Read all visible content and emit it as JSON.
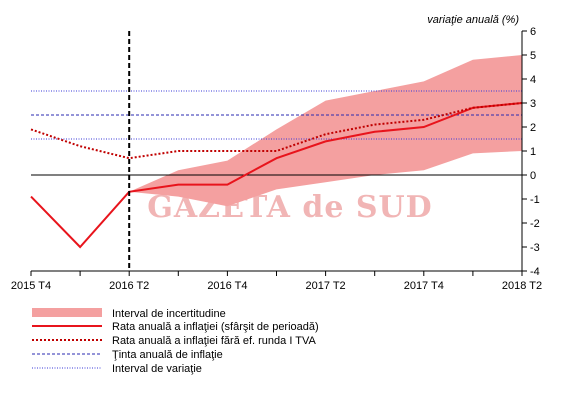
{
  "chart_data": {
    "type": "line",
    "ylabel": "variaţie anuală (%)",
    "ylim": [
      -4,
      6
    ],
    "yticks": [
      -4,
      -3,
      -2,
      -1,
      0,
      1,
      2,
      3,
      4,
      5,
      6
    ],
    "x_labels": [
      {
        "index": 0,
        "label": "2015 T4"
      },
      {
        "index": 2,
        "label": "2016 T2"
      },
      {
        "index": 4,
        "label": "2016 T4"
      },
      {
        "index": 6,
        "label": "2017 T2"
      },
      {
        "index": 8,
        "label": "2017 T4"
      },
      {
        "index": 10,
        "label": "2018 T2"
      }
    ],
    "x_count": 11,
    "vertical_marker_index": 2,
    "watermark": "GAZETA de SUD",
    "uncertainty_band": {
      "name": "Interval de incertitudine",
      "color": "#f4a0a0",
      "x": [
        2,
        3,
        4,
        5,
        6,
        7,
        8,
        9,
        10
      ],
      "lower": [
        -0.7,
        -0.9,
        -1.3,
        -0.6,
        -0.3,
        0.0,
        0.2,
        0.9,
        1.0
      ],
      "upper": [
        -0.7,
        0.2,
        0.6,
        1.9,
        3.1,
        3.5,
        3.9,
        4.8,
        5.0
      ]
    },
    "series": [
      {
        "name": "Rata anuală a inflaţiei (sfârşit de perioadă)",
        "color": "#e8141c",
        "style": "solid",
        "x": [
          0,
          1,
          2,
          3,
          4,
          5,
          6,
          7,
          8,
          9,
          10
        ],
        "values": [
          -0.9,
          -3.0,
          -0.7,
          -0.4,
          -0.4,
          0.7,
          1.4,
          1.8,
          2.0,
          2.8,
          3.0
        ]
      },
      {
        "name": "Rata anuală a inflaţiei fără ef. runda I TVA",
        "color": "#c00000",
        "style": "dotted",
        "x": [
          0,
          1,
          2,
          3,
          4,
          5,
          6,
          7,
          8,
          9,
          10
        ],
        "values": [
          1.9,
          1.2,
          0.7,
          1.0,
          1.0,
          1.0,
          1.7,
          2.1,
          2.3,
          2.8,
          3.0
        ]
      }
    ],
    "reference_lines": [
      {
        "name": "Ţinta anuală de inflaţie",
        "style": "dashed",
        "color": "#2a2ab0",
        "y": [
          2.5
        ]
      },
      {
        "name": "Interval de variaţie",
        "style": "dotted",
        "color": "#3a3ad8",
        "y": [
          1.5,
          3.5
        ]
      }
    ],
    "zero_line": {
      "y": 0,
      "color": "#000000"
    },
    "legend_order": [
      "band",
      "series0",
      "series1",
      "ref0",
      "ref1"
    ],
    "legend_position": "bottom-left"
  }
}
